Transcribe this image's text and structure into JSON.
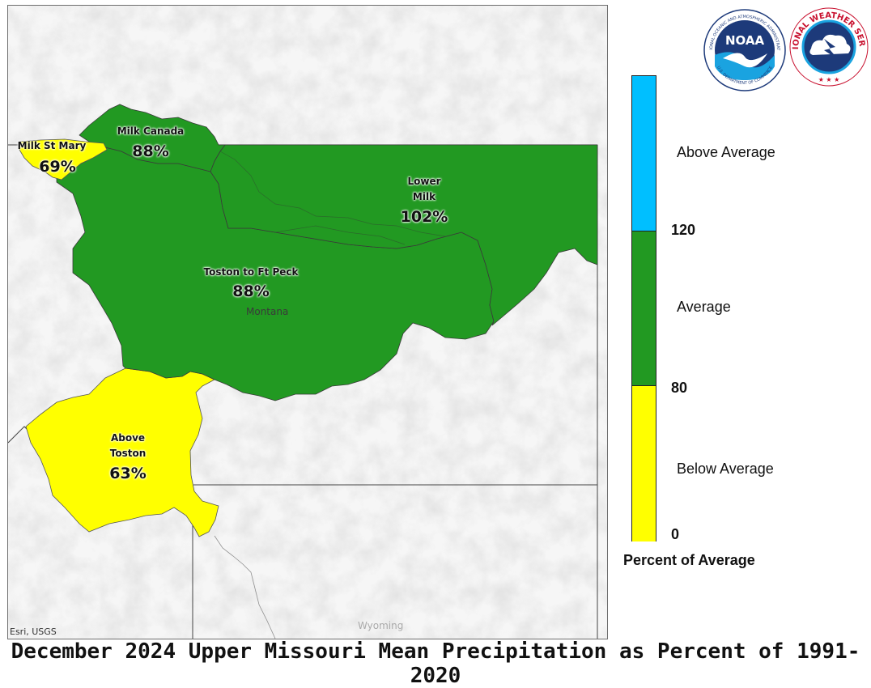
{
  "caption": "December 2024 Upper Missouri Mean Precipitation as Percent of 1991-2020",
  "map": {
    "basemap_credit": "Esri, USGS",
    "state_labels": {
      "montana": "Montana",
      "wyoming": "Wyoming"
    },
    "regions": [
      {
        "id": "milk-st-mary",
        "name": "Milk St Mary",
        "percent": "69%",
        "category": "Below Average",
        "color": "#ffff00"
      },
      {
        "id": "milk-canada",
        "name": "Milk Canada",
        "percent": "88%",
        "category": "Average",
        "color": "#229922"
      },
      {
        "id": "lower-milk",
        "name_line1": "Lower",
        "name_line2": "Milk",
        "percent": "102%",
        "category": "Average",
        "color": "#229922"
      },
      {
        "id": "toston-ft-peck",
        "name": "Toston to Ft Peck",
        "percent": "88%",
        "category": "Average",
        "color": "#229922"
      },
      {
        "id": "above-toston",
        "name_line1": "Above",
        "name_line2": "Toston",
        "percent": "63%",
        "category": "Below Average",
        "color": "#ffff00"
      }
    ]
  },
  "legend": {
    "title": "Percent of Average",
    "categories": [
      {
        "label": "Above Average",
        "color": "#00bfff"
      },
      {
        "label": "Average",
        "color": "#229922"
      },
      {
        "label": "Below Average",
        "color": "#ffff00"
      }
    ],
    "breaks": [
      "120",
      "80",
      "0"
    ]
  },
  "logos": {
    "noaa_text": "NOAA",
    "noaa_ring": "NATIONAL OCEANIC AND ATMOSPHERIC ADMINISTRATION",
    "noaa_bottom": "U.S. DEPARTMENT OF COMMERCE",
    "nws_ring": "NATIONAL WEATHER SERVICE"
  }
}
